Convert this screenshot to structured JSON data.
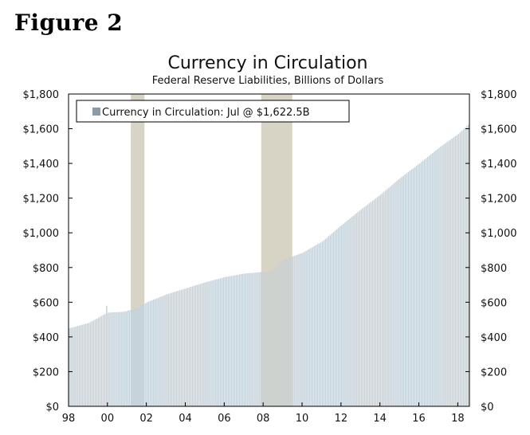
{
  "figure_label": "Figure 2",
  "chart_data": {
    "type": "bar",
    "title": "Currency in Circulation",
    "subtitle": "Federal Reserve Liabilities, Billions of Dollars",
    "legend": "Currency in Circulation: Jul @ $1,622.5B",
    "legend_placement": "top-left",
    "xlabel": "",
    "ylabel": "",
    "ylim": [
      0,
      1800
    ],
    "xlim": [
      1998.0,
      2018.6
    ],
    "y_ticks": [
      0,
      200,
      400,
      600,
      800,
      1000,
      1200,
      1400,
      1600,
      1800
    ],
    "y_tick_labels": [
      "$0",
      "$200",
      "$400",
      "$600",
      "$800",
      "$1,000",
      "$1,200",
      "$1,400",
      "$1,600",
      "$1,800"
    ],
    "x_ticks": [
      1998,
      2000,
      2002,
      2004,
      2006,
      2008,
      2010,
      2012,
      2014,
      2016,
      2018
    ],
    "x_tick_labels": [
      "98",
      "00",
      "02",
      "04",
      "06",
      "08",
      "10",
      "12",
      "14",
      "16",
      "18"
    ],
    "recessions": [
      {
        "start": 2001.2,
        "end": 2001.9
      },
      {
        "start": 2007.9,
        "end": 2009.5
      }
    ],
    "series": [
      {
        "name": "Currency in Circulation",
        "frequency": "monthly",
        "start": "1998-01",
        "end": "2018-07",
        "keypoints": [
          {
            "x": 1998.0,
            "y": 450
          },
          {
            "x": 1999.0,
            "y": 480
          },
          {
            "x": 1999.8,
            "y": 530
          },
          {
            "x": 2000.0,
            "y": 540
          },
          {
            "x": 2000.8,
            "y": 545
          },
          {
            "x": 2001.5,
            "y": 565
          },
          {
            "x": 2002.0,
            "y": 600
          },
          {
            "x": 2003.0,
            "y": 645
          },
          {
            "x": 2004.0,
            "y": 680
          },
          {
            "x": 2005.0,
            "y": 715
          },
          {
            "x": 2006.0,
            "y": 745
          },
          {
            "x": 2007.0,
            "y": 765
          },
          {
            "x": 2008.0,
            "y": 775
          },
          {
            "x": 2008.4,
            "y": 780
          },
          {
            "x": 2008.9,
            "y": 840
          },
          {
            "x": 2009.5,
            "y": 865
          },
          {
            "x": 2010.0,
            "y": 885
          },
          {
            "x": 2011.0,
            "y": 950
          },
          {
            "x": 2012.0,
            "y": 1045
          },
          {
            "x": 2013.0,
            "y": 1135
          },
          {
            "x": 2014.0,
            "y": 1220
          },
          {
            "x": 2015.0,
            "y": 1315
          },
          {
            "x": 2016.0,
            "y": 1400
          },
          {
            "x": 2017.0,
            "y": 1490
          },
          {
            "x": 2018.0,
            "y": 1570
          },
          {
            "x": 2018.5,
            "y": 1622.5
          }
        ],
        "spike": {
          "x": 1999.92,
          "y": 580
        }
      }
    ],
    "colors": {
      "bar": "#c5d2da",
      "legend_swatch": "#8a9aa6",
      "recession": "#d7d3c5",
      "axis": "#000000",
      "legend_border": "#000000"
    }
  }
}
